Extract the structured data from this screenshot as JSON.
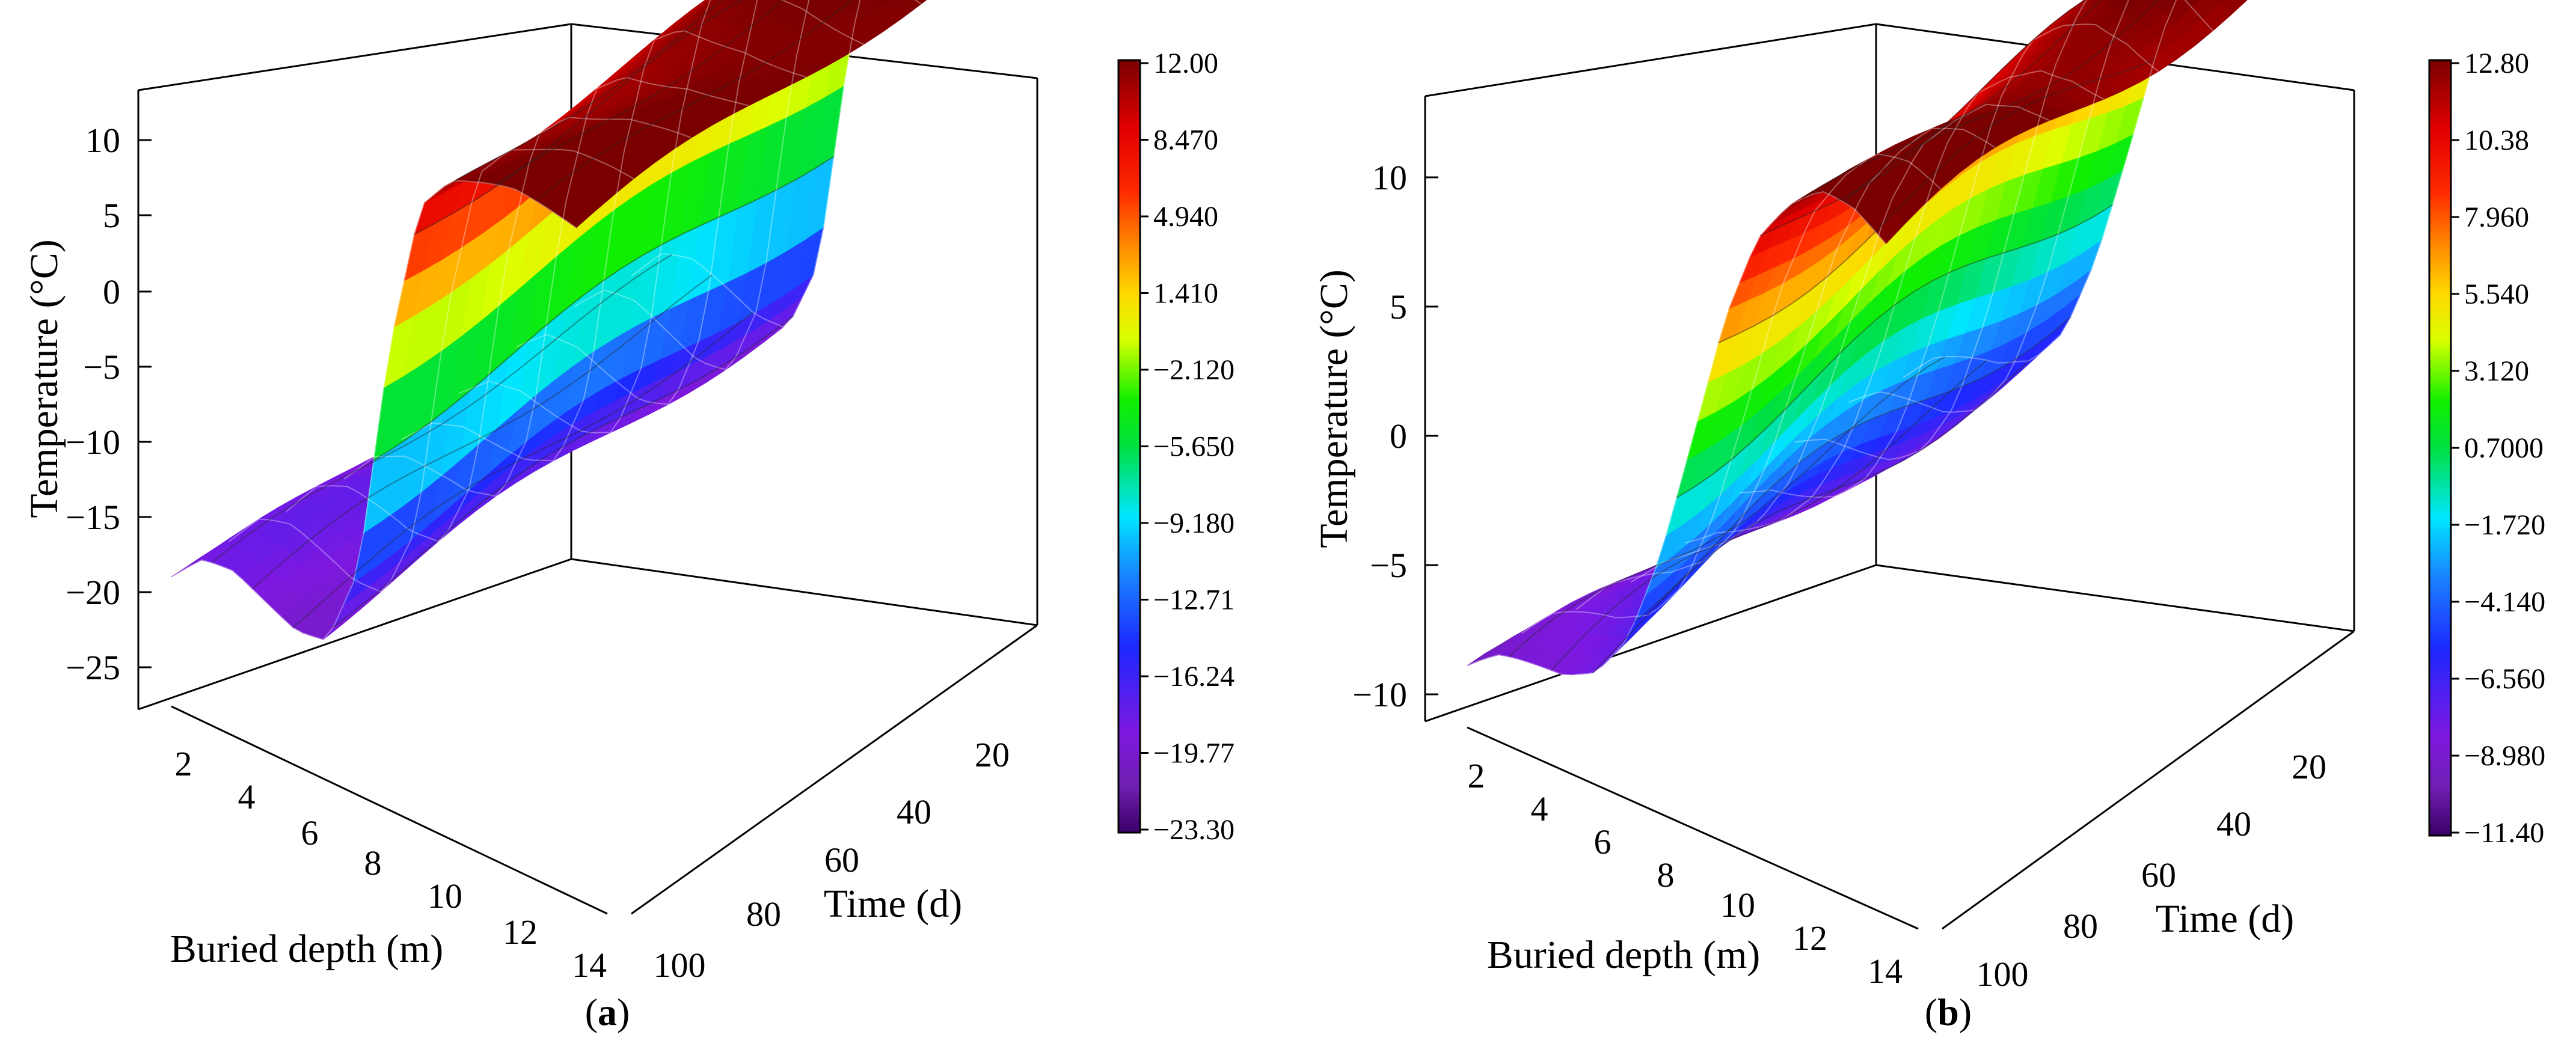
{
  "figure": {
    "panels": [
      {
        "label": "(a)",
        "label_letter": "a"
      },
      {
        "label": "(b)",
        "label_letter": "b"
      }
    ]
  },
  "chart_data": [
    {
      "type": "surface",
      "panel": "a",
      "zlabel": "Temperature (°C)",
      "xlabel": "Buried depth (m)",
      "ylabel": "Time (d)",
      "x_ticks": [
        "2",
        "4",
        "6",
        "8",
        "10",
        "12",
        "14"
      ],
      "y_ticks": [
        "20",
        "40",
        "60",
        "80",
        "100"
      ],
      "z_ticks": [
        "10",
        "5",
        "0",
        "−5",
        "−10",
        "−15",
        "−20",
        "−25"
      ],
      "xlim": [
        1,
        15
      ],
      "ylim": [
        0,
        100
      ],
      "zlim": [
        -28,
        13
      ],
      "colorbar": {
        "min": -23.3,
        "max": 12.0,
        "labels": [
          "12.00",
          "8.470",
          "4.940",
          "1.410",
          "−2.120",
          "−5.650",
          "−9.180",
          "−12.71",
          "−16.24",
          "−19.77",
          "−23.30"
        ]
      },
      "profile": {
        "depth_m": [
          1,
          2,
          3,
          4,
          5,
          6,
          7,
          8,
          9,
          10,
          11,
          12,
          13,
          14
        ],
        "temperature_c": [
          -21,
          -19,
          -18.5,
          -19,
          -19.5,
          -19,
          -14,
          0,
          9,
          11,
          11.5,
          12,
          12,
          12
        ]
      }
    },
    {
      "type": "surface",
      "panel": "b",
      "zlabel": "Temperature (°C)",
      "xlabel": "Buried depth (m)",
      "ylabel": "Time (d)",
      "x_ticks": [
        "2",
        "4",
        "6",
        "8",
        "10",
        "12",
        "14"
      ],
      "y_ticks": [
        "20",
        "40",
        "60",
        "80",
        "100"
      ],
      "z_ticks": [
        "10",
        "5",
        "0",
        "−5",
        "−10"
      ],
      "xlim": [
        1,
        15
      ],
      "ylim": [
        0,
        100
      ],
      "zlim": [
        -12,
        13
      ],
      "colorbar": {
        "min": -11.4,
        "max": 12.8,
        "labels": [
          "12.80",
          "10.38",
          "7.960",
          "5.540",
          "3.120",
          "0.7000",
          "−1.720",
          "−4.140",
          "−6.560",
          "−8.980",
          "−11.40"
        ]
      },
      "profile": {
        "depth_m": [
          1,
          2,
          3,
          4,
          5,
          6,
          7,
          8,
          9,
          10,
          11,
          12,
          13,
          14
        ],
        "temperature_c": [
          -10.5,
          -9.5,
          -9,
          -8.5,
          -7.5,
          -5.5,
          -2,
          2.5,
          7,
          10,
          11.5,
          12.5,
          12.6,
          12.2
        ]
      }
    }
  ]
}
